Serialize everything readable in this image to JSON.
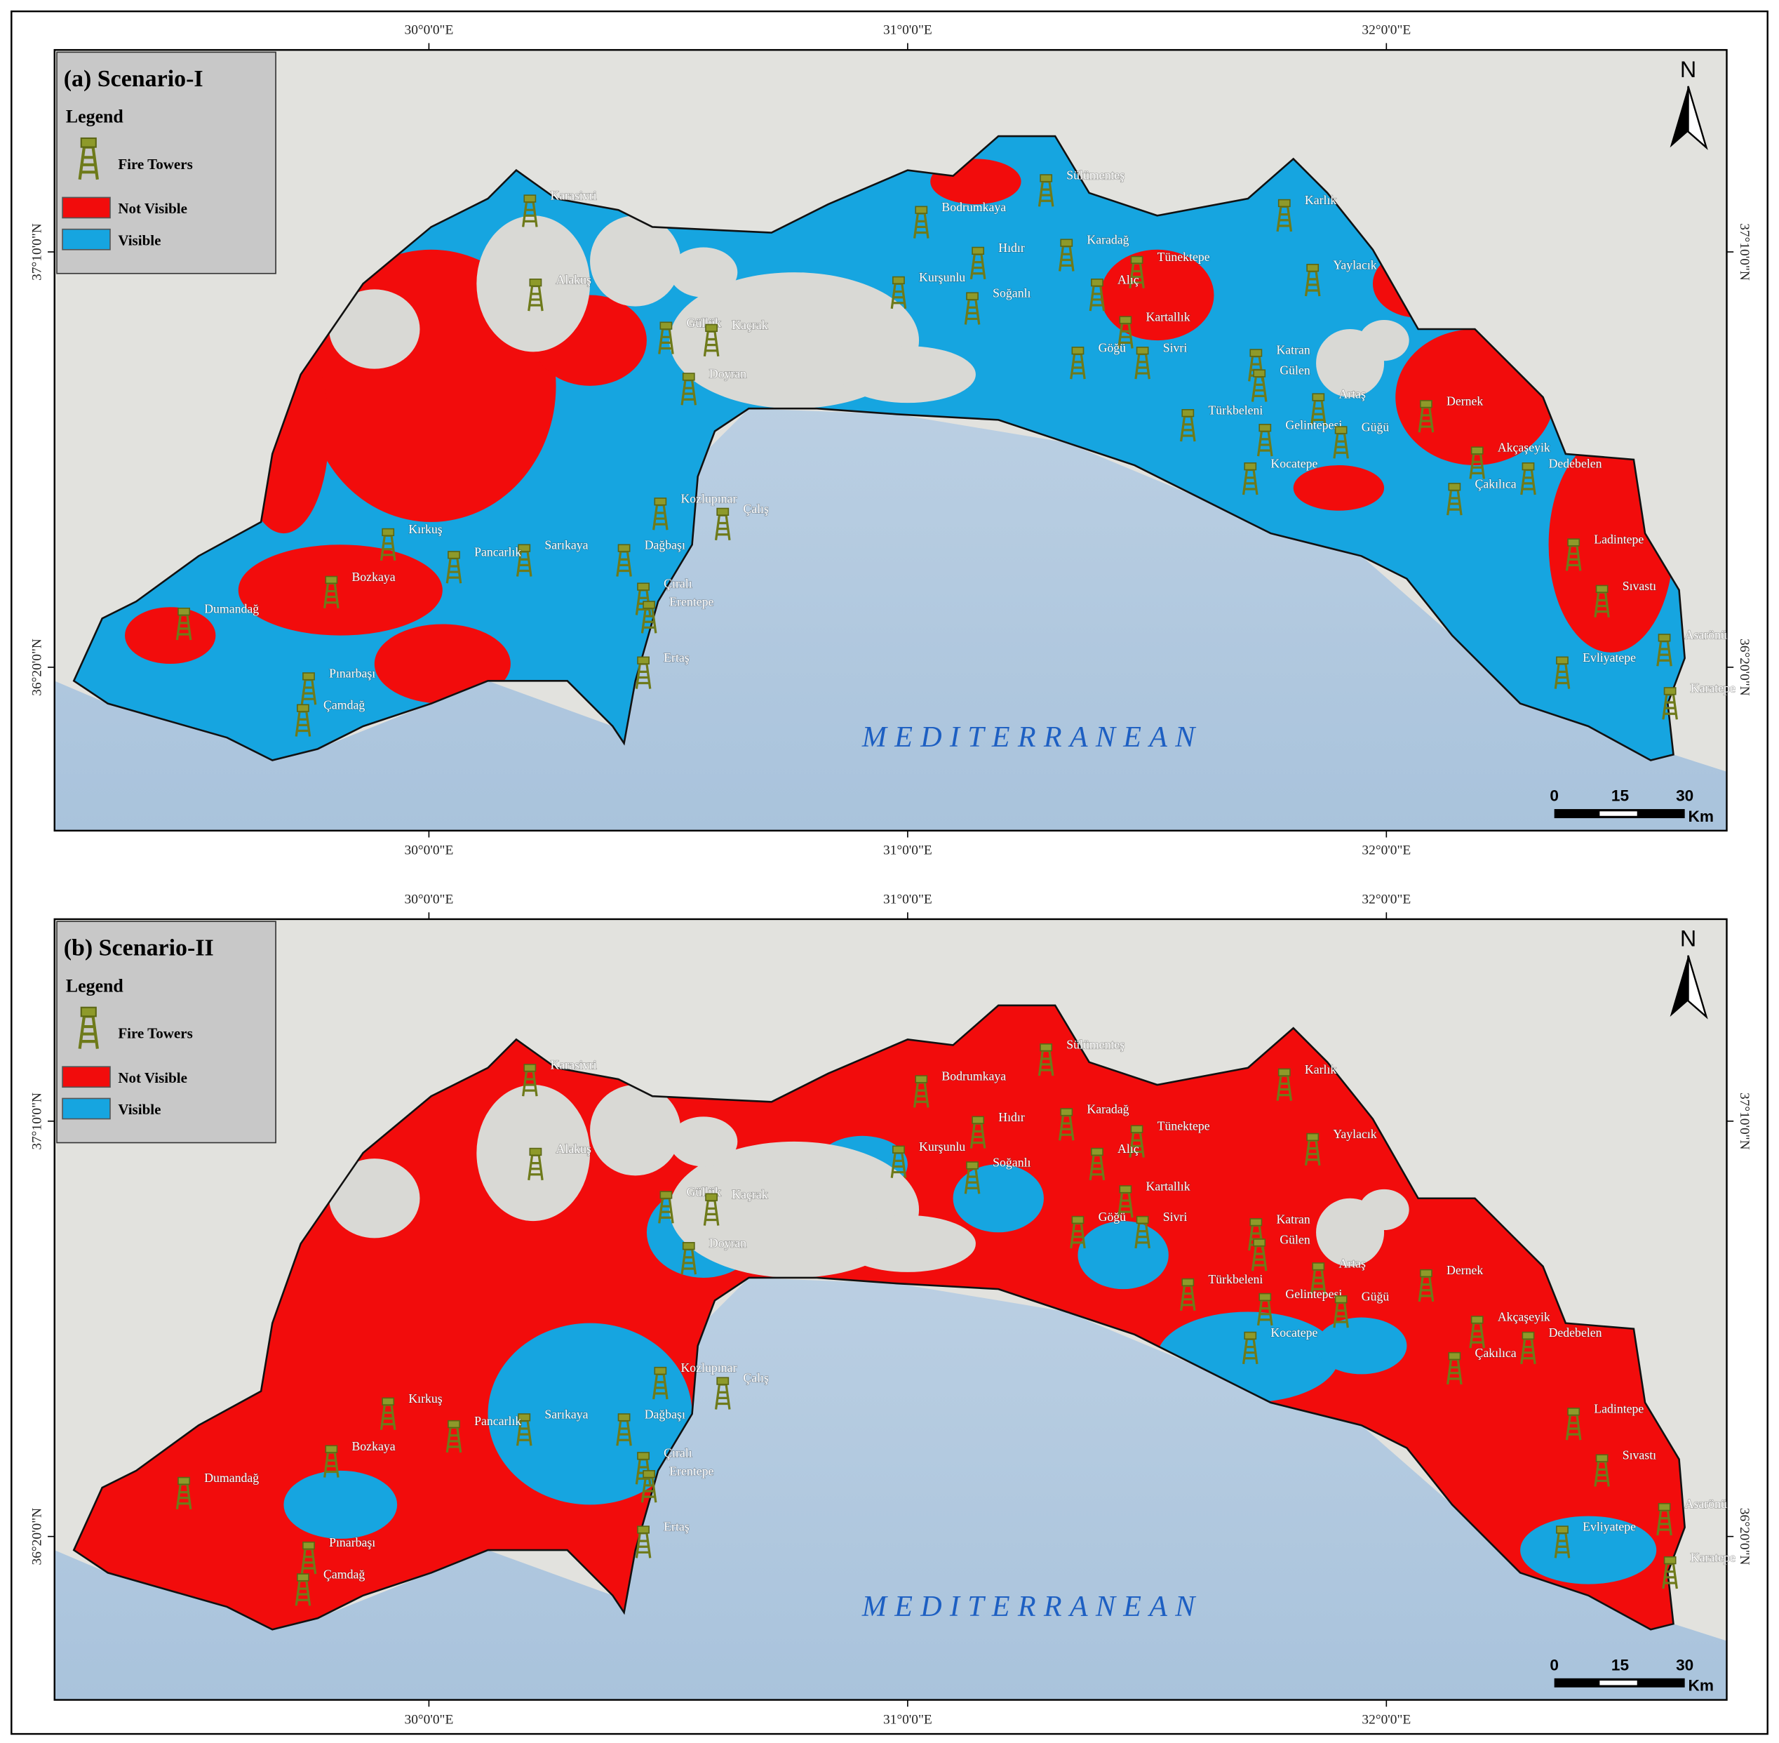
{
  "panels": [
    {
      "title": "(a) Scenario-I"
    },
    {
      "title": "(b) Scenario-II"
    }
  ],
  "legend": {
    "heading": "Legend",
    "items": [
      "Fire Towers",
      "Not Visible",
      "Visible"
    ]
  },
  "longitudes": [
    "30°0'0\"E",
    "31°0'0\"E",
    "32°0'0\"E"
  ],
  "latitudes": [
    "37°10'0\"N",
    "36°20'0\"N"
  ],
  "north": "N",
  "scale": {
    "ticks": [
      "0",
      "15",
      "30"
    ],
    "unit": "Km"
  },
  "sea": "MEDITERRANEAN",
  "places": [
    "Karasivri",
    "Alakuş",
    "Güllük",
    "Kaçrak",
    "Doyran",
    "Bodrumkaya",
    "Kurşunlu",
    "Sülümenteş",
    "Hıdır",
    "Soğanlı",
    "Karadağ",
    "Tünektepe",
    "Alıç",
    "Kartallık",
    "Göğü",
    "Sivri",
    "Karlık",
    "Yaylacık",
    "Katran",
    "Gülen",
    "Artaş",
    "Türkbeleni",
    "Gelintepesi",
    "Güğü",
    "Dernek",
    "Kocatepe",
    "Akçaşeyik",
    "Dedebelen",
    "Çakılıca",
    "Ladintepe",
    "Sıvastı",
    "Asarönü",
    "Evliyatepe",
    "Karatepe",
    "Kozlupınar",
    "Çalış",
    "Dağbaşı",
    "Çıralı",
    "Erentepe",
    "Ertaş",
    "Sarıkaya",
    "Pancarlık",
    "Bozkaya",
    "Kırkuş",
    "Dumandağ",
    "Pınarbaşı",
    "Çamdağ"
  ]
}
